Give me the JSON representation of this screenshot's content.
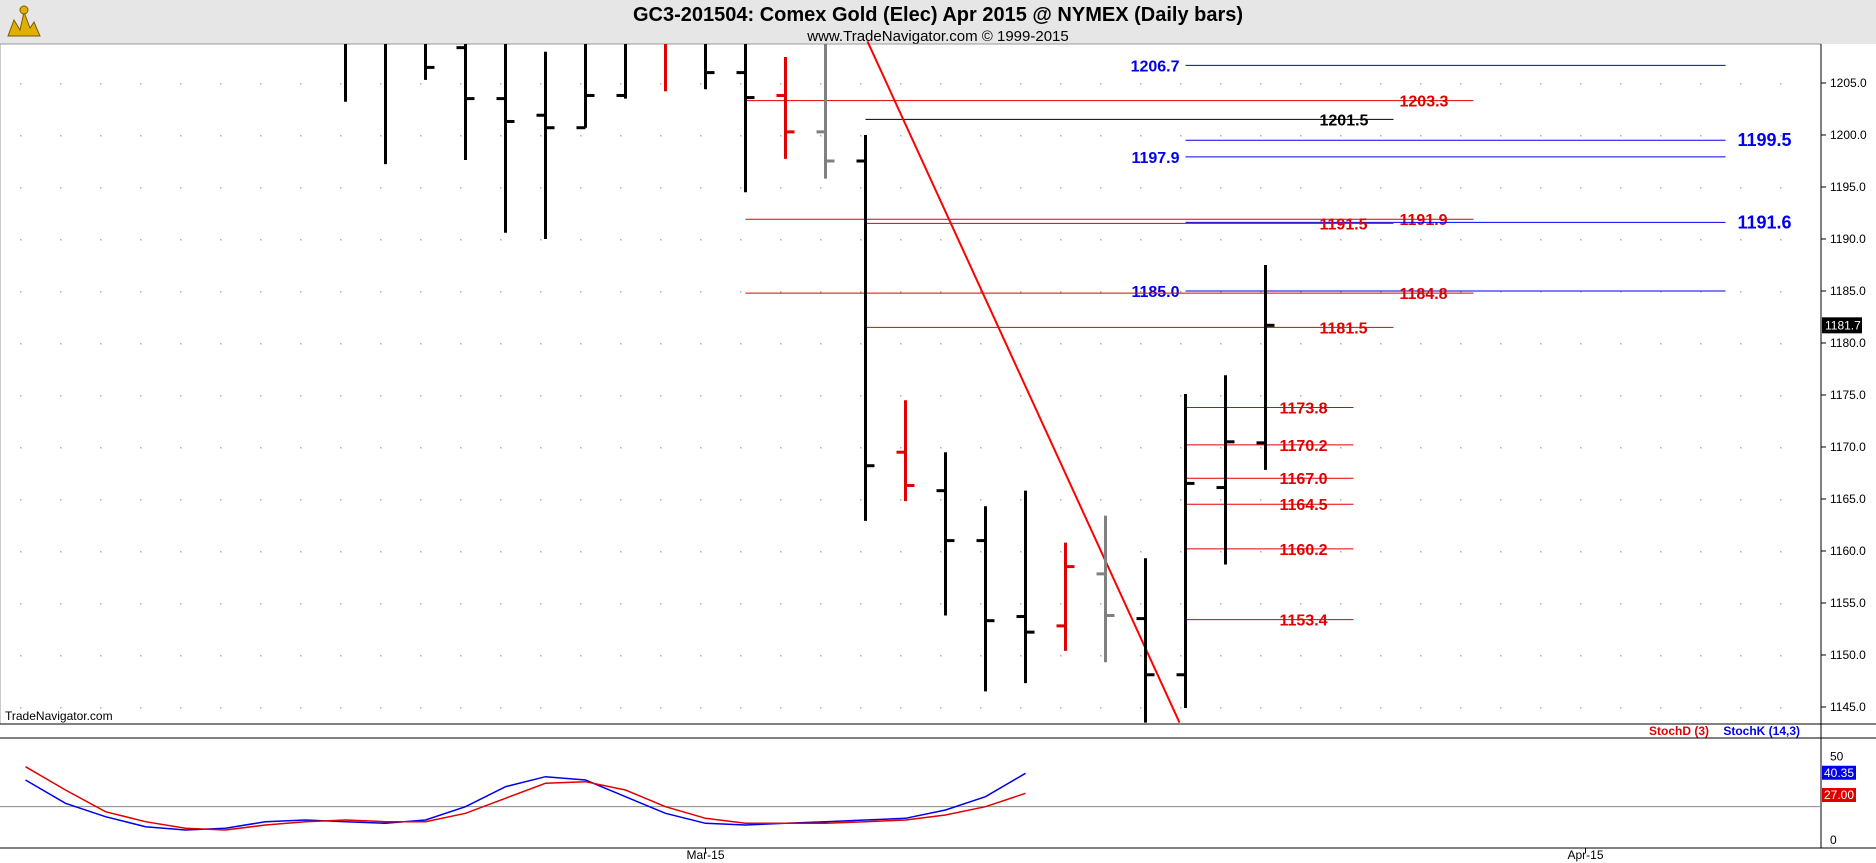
{
  "header": {
    "title": "GC3-201504:  Comex Gold (Elec) Apr 2015 @ NYMEX  (Daily bars)",
    "subtitle": "www.TradeNavigator.com © 1999-2015",
    "logo_icon": "trade-navigator-logo-icon"
  },
  "watermark": "TradeNavigator.com",
  "colors": {
    "up": "#000000",
    "red": "#e00000",
    "gray": "#808080",
    "blue": "#0000ee",
    "trend": "#ff0000"
  },
  "chart_data": {
    "type": "ohlc",
    "ylim": [
      1143.5,
      1209.0
    ],
    "y_ticks": [
      "1145.0",
      "1150.0",
      "1155.0",
      "1160.0",
      "1165.0",
      "1170.0",
      "1175.0",
      "1180.0",
      "1185.0",
      "1190.0",
      "1195.0",
      "1200.0",
      "1205.0"
    ],
    "last_price": "1181.7",
    "x_labels": [
      {
        "label": "Mar-15",
        "bar": 17
      },
      {
        "label": "Apr-15",
        "bar": 39
      }
    ],
    "bars": [
      {
        "i": 8,
        "open": 1209.0,
        "high": 1209.0,
        "low": 1203.2,
        "close": 1209.0,
        "color": "black"
      },
      {
        "i": 9,
        "open": 1209.0,
        "high": 1209.0,
        "low": 1197.2,
        "close": 1209.0,
        "color": "black"
      },
      {
        "i": 10,
        "open": 1209.0,
        "high": 1209.0,
        "low": 1205.3,
        "close": 1206.5,
        "color": "black"
      },
      {
        "i": 11,
        "open": 1208.4,
        "high": 1209.0,
        "low": 1197.6,
        "close": 1203.5,
        "color": "black"
      },
      {
        "i": 12,
        "open": 1203.5,
        "high": 1209.0,
        "low": 1190.6,
        "close": 1201.3,
        "color": "black"
      },
      {
        "i": 13,
        "open": 1201.9,
        "high": 1208.0,
        "low": 1190.0,
        "close": 1200.7,
        "color": "black"
      },
      {
        "i": 14,
        "open": 1200.7,
        "high": 1209.0,
        "low": 1200.7,
        "close": 1203.8,
        "color": "black"
      },
      {
        "i": 15,
        "open": 1203.8,
        "high": 1209.0,
        "low": 1203.5,
        "close": 1209.0,
        "color": "black"
      },
      {
        "i": 16,
        "open": 1209.0,
        "high": 1209.0,
        "low": 1204.2,
        "close": 1209.0,
        "color": "red"
      },
      {
        "i": 17,
        "open": 1209.0,
        "high": 1209.0,
        "low": 1204.4,
        "close": 1206.0,
        "color": "black"
      },
      {
        "i": 18,
        "open": 1206.0,
        "high": 1209.0,
        "low": 1194.5,
        "close": 1203.6,
        "color": "black"
      },
      {
        "i": 19,
        "open": 1203.8,
        "high": 1207.5,
        "low": 1197.7,
        "close": 1200.3,
        "color": "red"
      },
      {
        "i": 20,
        "open": 1200.3,
        "high": 1209.0,
        "low": 1195.8,
        "close": 1197.5,
        "color": "gray"
      },
      {
        "i": 21,
        "open": 1197.5,
        "high": 1200.0,
        "low": 1162.9,
        "close": 1168.2,
        "color": "black"
      },
      {
        "i": 22,
        "open": 1169.5,
        "high": 1174.5,
        "low": 1164.8,
        "close": 1166.3,
        "color": "red"
      },
      {
        "i": 23,
        "open": 1165.8,
        "high": 1169.5,
        "low": 1153.8,
        "close": 1161.0,
        "color": "black"
      },
      {
        "i": 24,
        "open": 1161.0,
        "high": 1164.3,
        "low": 1146.5,
        "close": 1153.3,
        "color": "black"
      },
      {
        "i": 25,
        "open": 1153.7,
        "high": 1165.8,
        "low": 1147.3,
        "close": 1152.2,
        "color": "black"
      },
      {
        "i": 26,
        "open": 1152.8,
        "high": 1160.8,
        "low": 1150.4,
        "close": 1158.5,
        "color": "red"
      },
      {
        "i": 27,
        "open": 1157.8,
        "high": 1163.4,
        "low": 1149.3,
        "close": 1153.8,
        "color": "gray"
      },
      {
        "i": 28,
        "open": 1153.5,
        "high": 1159.3,
        "low": 1143.5,
        "close": 1148.1,
        "color": "black"
      },
      {
        "i": 29,
        "open": 1148.1,
        "high": 1175.1,
        "low": 1144.9,
        "close": 1166.5,
        "color": "black"
      },
      {
        "i": 30,
        "open": 1166.1,
        "high": 1176.9,
        "low": 1158.7,
        "close": 1170.5,
        "color": "black"
      },
      {
        "i": 31,
        "open": 1170.4,
        "high": 1187.5,
        "low": 1167.8,
        "close": 1181.7,
        "color": "black"
      }
    ],
    "levels": [
      {
        "value": 1206.7,
        "label": "1206.7",
        "color": "blue",
        "from_bar": 29,
        "to_bar": 42.5,
        "label_pos": "left",
        "size": "normal"
      },
      {
        "value": 1203.3,
        "label": "1203.3",
        "color": "red",
        "from_bar": 18,
        "to_bar": 36.2,
        "label_pos": "right",
        "size": "normal"
      },
      {
        "value": 1201.5,
        "label": "1201.5",
        "color": "black",
        "from_bar": 21,
        "to_bar": 34.2,
        "label_pos": "right",
        "size": "normal"
      },
      {
        "value": 1199.5,
        "label": "1199.5",
        "color": "blue",
        "from_bar": 29,
        "to_bar": 42.5,
        "label_pos": "right",
        "size": "big"
      },
      {
        "value": 1197.9,
        "label": "1197.9",
        "color": "blue",
        "from_bar": 29,
        "to_bar": 42.5,
        "label_pos": "left",
        "size": "normal"
      },
      {
        "value": 1191.9,
        "label": "1191.9",
        "color": "red",
        "from_bar": 18,
        "to_bar": 36.2,
        "label_pos": "right",
        "size": "normal"
      },
      {
        "value": 1191.6,
        "label": "1191.6",
        "color": "blue",
        "from_bar": 29,
        "to_bar": 42.5,
        "label_pos": "right",
        "size": "big"
      },
      {
        "value": 1191.5,
        "label": "1191.5",
        "color": "red",
        "from_bar": 21,
        "to_bar": 34.2,
        "label_pos": "right",
        "size": "normal"
      },
      {
        "value": 1185.0,
        "label": "1185.0",
        "color": "blue",
        "from_bar": 29,
        "to_bar": 42.5,
        "label_pos": "left",
        "size": "normal"
      },
      {
        "value": 1184.8,
        "label": "1184.8",
        "color": "red",
        "from_bar": 18,
        "to_bar": 36.2,
        "label_pos": "right",
        "size": "normal"
      },
      {
        "value": 1181.5,
        "label": "1181.5",
        "color": "red",
        "from_bar": 21,
        "to_bar": 34.2,
        "label_pos": "right",
        "size": "normal"
      },
      {
        "value": 1173.8,
        "label": "1173.8",
        "color": "red",
        "from_bar": 29,
        "to_bar": 33.2,
        "label_pos": "right",
        "size": "normal"
      },
      {
        "value": 1170.2,
        "label": "1170.2",
        "color": "red",
        "from_bar": 29,
        "to_bar": 33.2,
        "label_pos": "right",
        "size": "normal"
      },
      {
        "value": 1167.0,
        "label": "1167.0",
        "color": "red",
        "from_bar": 29,
        "to_bar": 33.2,
        "label_pos": "right",
        "size": "normal"
      },
      {
        "value": 1164.5,
        "label": "1164.5",
        "color": "red",
        "from_bar": 29,
        "to_bar": 33.2,
        "label_pos": "right",
        "size": "normal"
      },
      {
        "value": 1160.2,
        "label": "1160.2",
        "color": "red",
        "from_bar": 29,
        "to_bar": 33.2,
        "label_pos": "right",
        "size": "normal"
      },
      {
        "value": 1153.4,
        "label": "1153.4",
        "color": "red",
        "from_bar": 29,
        "to_bar": 33.2,
        "label_pos": "right",
        "size": "normal"
      }
    ],
    "trendline": {
      "from": {
        "bar": 21,
        "price": 1209.0
      },
      "to": {
        "bar": 28.8,
        "price": 1143.5
      }
    },
    "indicator": {
      "legend": [
        {
          "label": "StochD (3)",
          "color": "red"
        },
        {
          "label": "StochK (14,3)",
          "color": "blue"
        }
      ],
      "ylim": [
        0,
        60
      ],
      "y_ticks": [
        "50",
        "0"
      ],
      "last_k": "40.35",
      "last_d": "27.00",
      "ref_level": 20,
      "stochK": [
        [
          0,
          36
        ],
        [
          1,
          22
        ],
        [
          2,
          14
        ],
        [
          3,
          8
        ],
        [
          4,
          6
        ],
        [
          5,
          7
        ],
        [
          6,
          11
        ],
        [
          7,
          12
        ],
        [
          8,
          11
        ],
        [
          9,
          10
        ],
        [
          10,
          12
        ],
        [
          11,
          20
        ],
        [
          12,
          32
        ],
        [
          13,
          38
        ],
        [
          14,
          36
        ],
        [
          15,
          26
        ],
        [
          16,
          16
        ],
        [
          17,
          10
        ],
        [
          18,
          9
        ],
        [
          19,
          10
        ],
        [
          20,
          11
        ],
        [
          21,
          12
        ],
        [
          22,
          13
        ],
        [
          23,
          18
        ],
        [
          24,
          26
        ],
        [
          25,
          40
        ]
      ],
      "stochD": [
        [
          0,
          44
        ],
        [
          1,
          30
        ],
        [
          2,
          17
        ],
        [
          3,
          11
        ],
        [
          4,
          7
        ],
        [
          5,
          6
        ],
        [
          6,
          9
        ],
        [
          7,
          11
        ],
        [
          8,
          12
        ],
        [
          9,
          11
        ],
        [
          10,
          11
        ],
        [
          11,
          16
        ],
        [
          12,
          25
        ],
        [
          13,
          34
        ],
        [
          14,
          35
        ],
        [
          15,
          30
        ],
        [
          16,
          20
        ],
        [
          17,
          13
        ],
        [
          18,
          10
        ],
        [
          19,
          10
        ],
        [
          20,
          10
        ],
        [
          21,
          11
        ],
        [
          22,
          12
        ],
        [
          23,
          15
        ],
        [
          24,
          20
        ],
        [
          25,
          28
        ]
      ]
    }
  }
}
